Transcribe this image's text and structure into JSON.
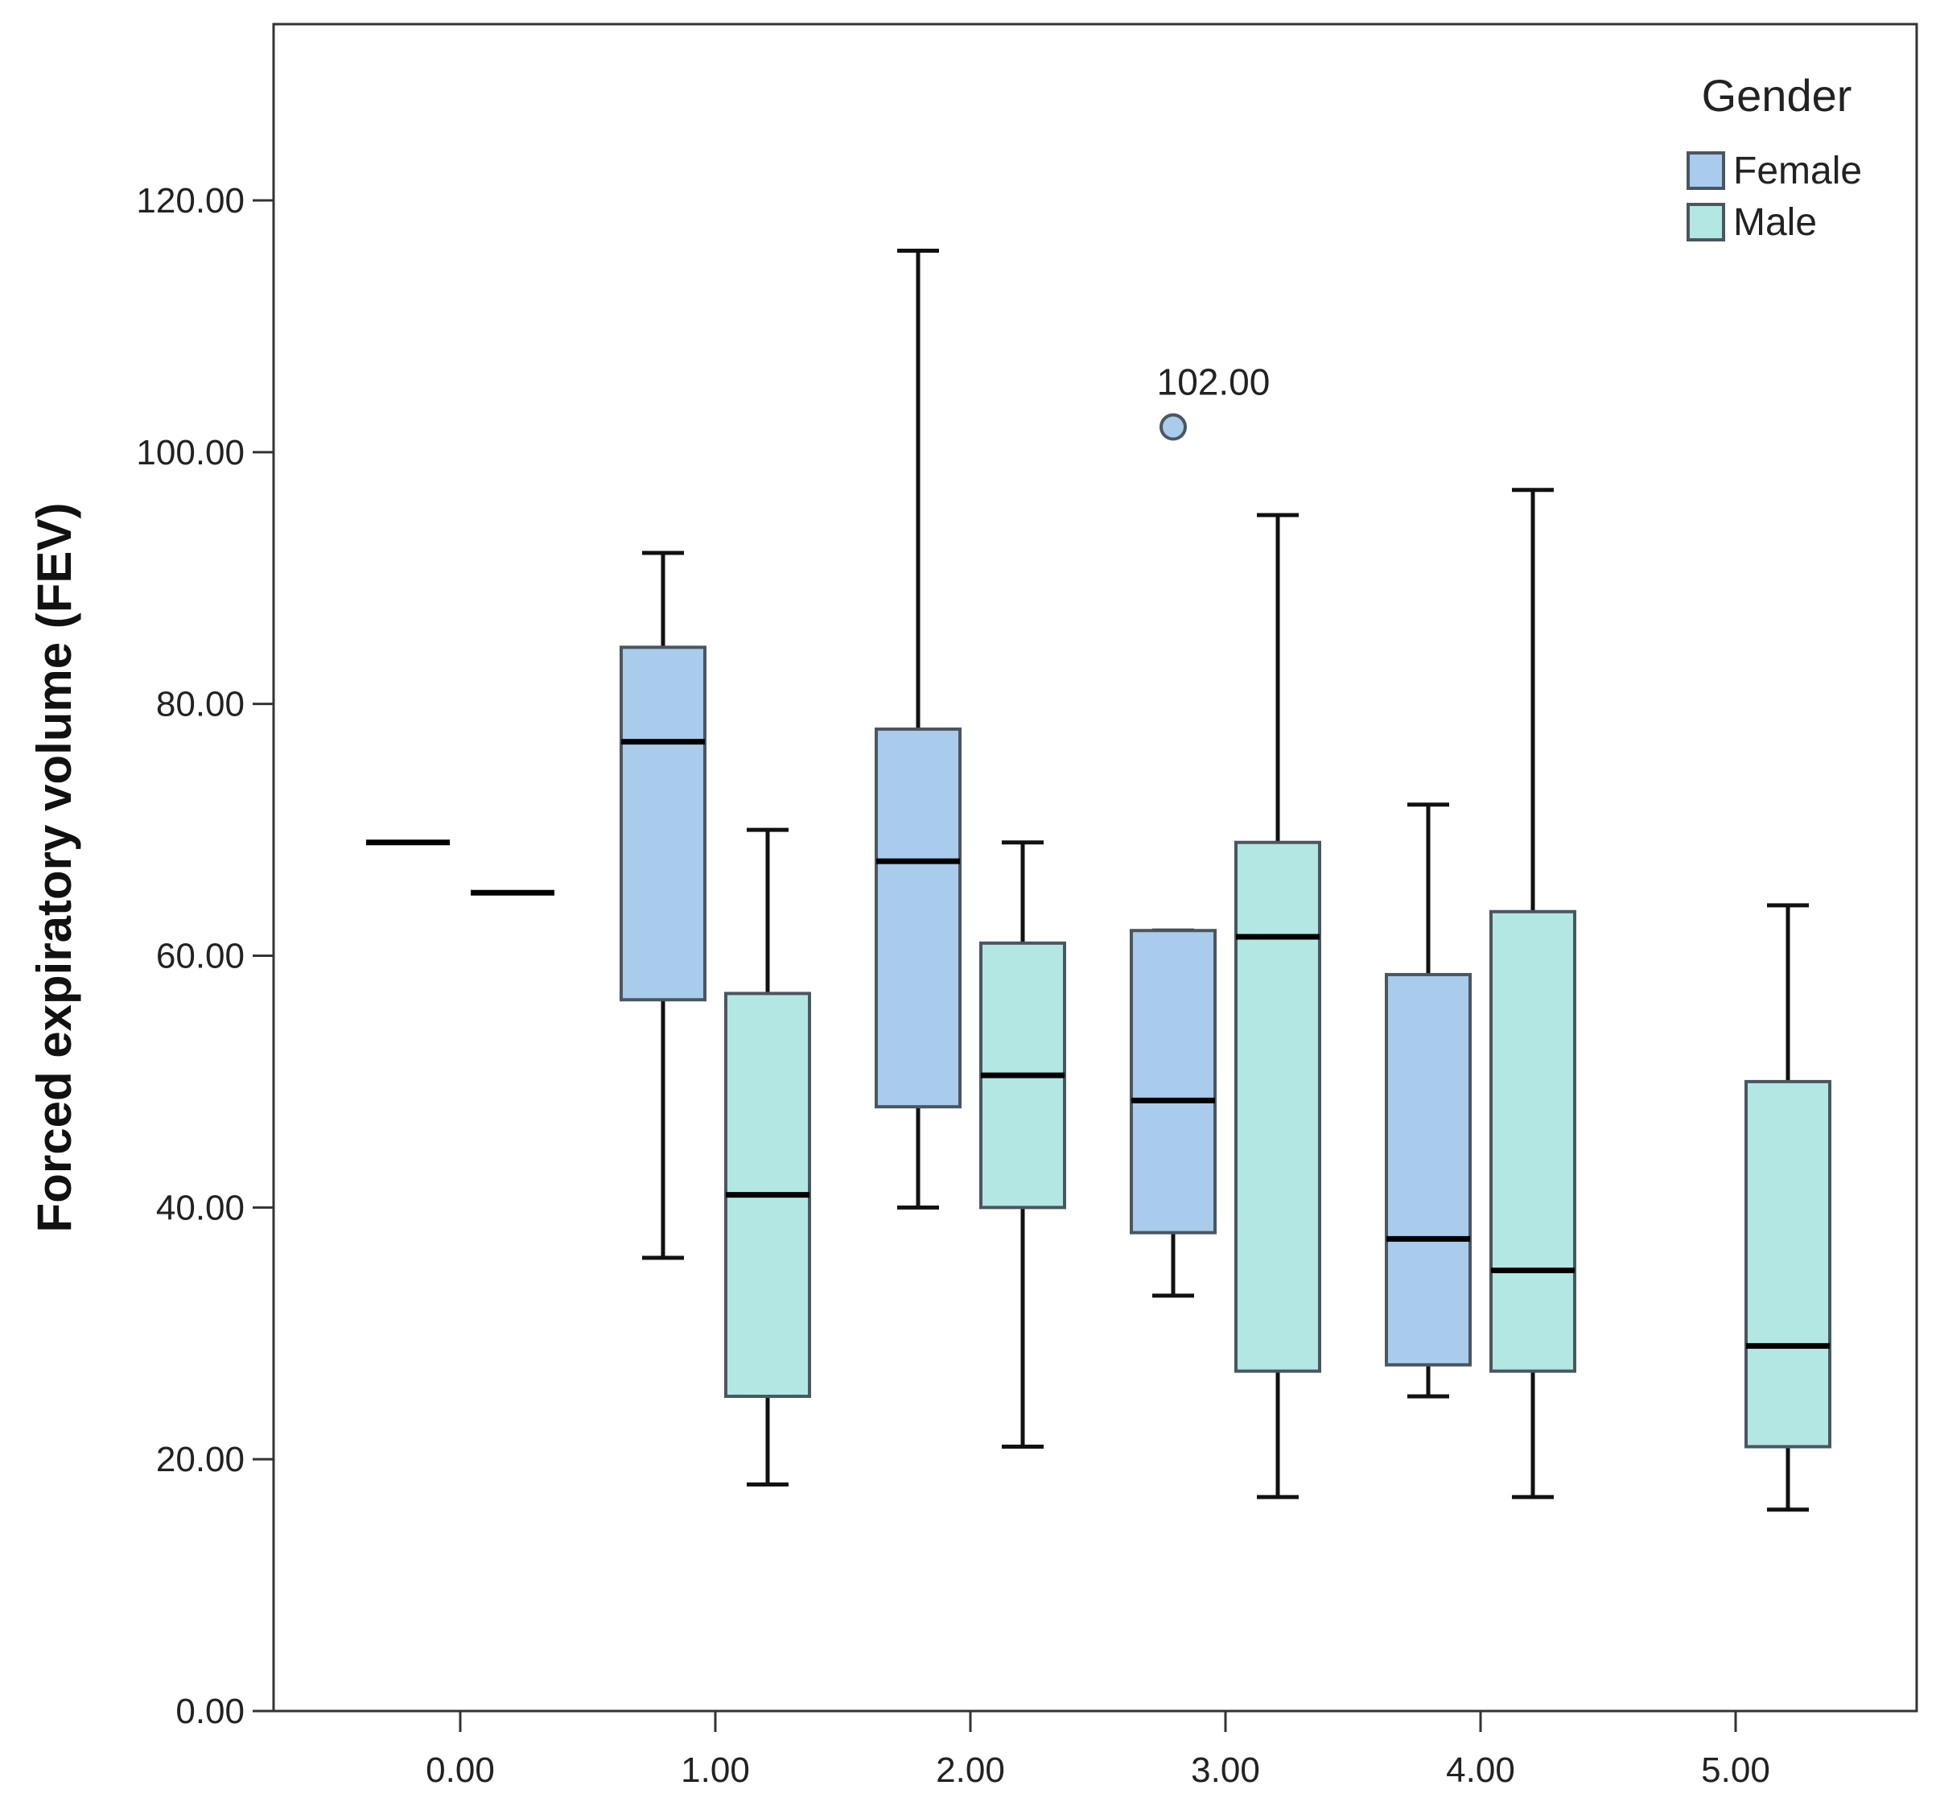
{
  "chart_data": {
    "type": "box",
    "xlabel": "",
    "ylabel": "Forced expiratory volume (FEV)",
    "ylim": [
      0,
      134
    ],
    "yticks": [
      0,
      20,
      40,
      60,
      80,
      100,
      120
    ],
    "ytick_labels": [
      "0.00",
      "20.00",
      "40.00",
      "60.00",
      "80.00",
      "100.00",
      "120.00"
    ],
    "categories": [
      "0.00",
      "1.00",
      "2.00",
      "3.00",
      "4.00",
      "5.00"
    ],
    "legend": {
      "title": "Gender",
      "placement": "top-right"
    },
    "colors": {
      "Female": "#a9cbec",
      "Male": "#b3e7e3",
      "stroke": "#4a5660"
    },
    "series": [
      {
        "name": "Female",
        "boxes": [
          {
            "category": "0.00",
            "min": 69,
            "q1": 69,
            "median": 69,
            "q3": 69,
            "max": 69
          },
          {
            "category": "1.00",
            "min": 36,
            "q1": 56.5,
            "median": 77,
            "q3": 84.5,
            "max": 92
          },
          {
            "category": "2.00",
            "min": 40,
            "q1": 48,
            "median": 67.5,
            "q3": 78,
            "max": 116
          },
          {
            "category": "3.00",
            "min": 33,
            "q1": 38,
            "median": 48.5,
            "q3": 62,
            "max": 62,
            "outliers": [
              102
            ]
          },
          {
            "category": "4.00",
            "min": 25,
            "q1": 27.5,
            "median": 37.5,
            "q3": 58.5,
            "max": 72
          }
        ]
      },
      {
        "name": "Male",
        "boxes": [
          {
            "category": "0.00",
            "min": 65,
            "q1": 65,
            "median": 65,
            "q3": 65,
            "max": 65
          },
          {
            "category": "1.00",
            "min": 18,
            "q1": 25,
            "median": 41,
            "q3": 57,
            "max": 70
          },
          {
            "category": "2.00",
            "min": 21,
            "q1": 40,
            "median": 50.5,
            "q3": 61,
            "max": 69
          },
          {
            "category": "3.00",
            "min": 17,
            "q1": 27,
            "median": 61.5,
            "q3": 69,
            "max": 95
          },
          {
            "category": "4.00",
            "min": 17,
            "q1": 27,
            "median": 35,
            "q3": 63.5,
            "max": 97
          },
          {
            "category": "5.00",
            "min": 16,
            "q1": 21,
            "median": 29,
            "q3": 50,
            "max": 64
          }
        ]
      }
    ],
    "annotations": [
      {
        "text": "102.00",
        "category": "3.00",
        "series": "Female",
        "value": 102
      }
    ]
  }
}
